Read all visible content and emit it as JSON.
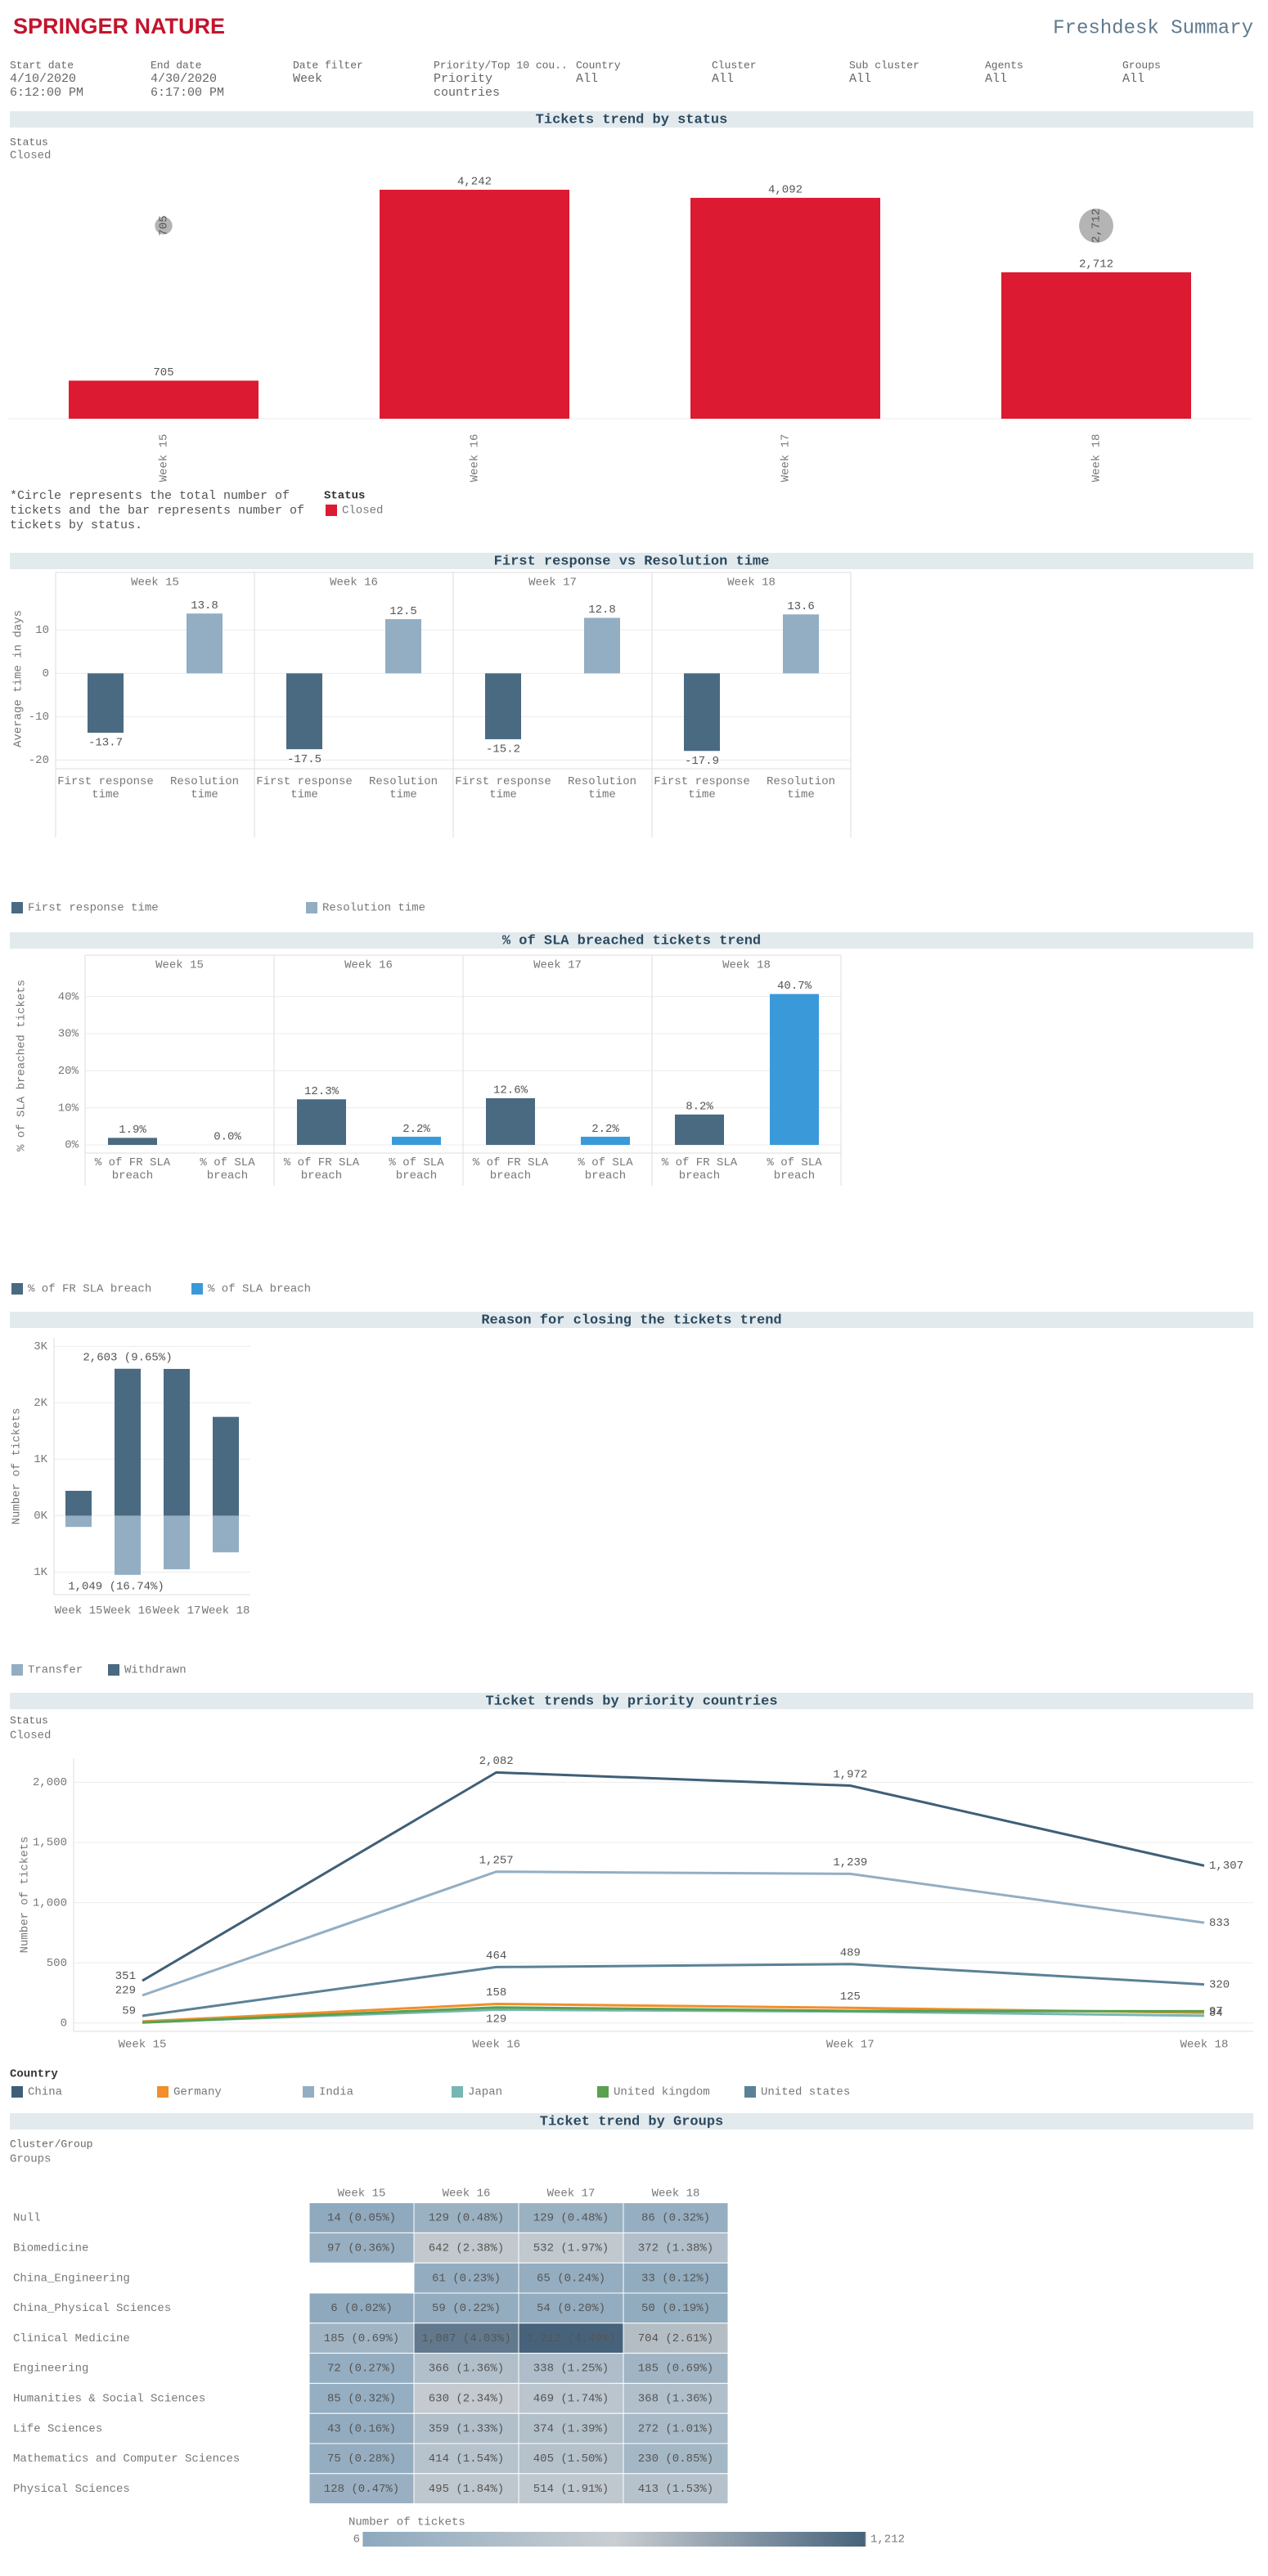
{
  "header": {
    "logo": "SPRINGER NATURE",
    "title": "Freshdesk Summary"
  },
  "filters": [
    {
      "label": "Start date",
      "value": "4/10/2020 6:12:00 PM"
    },
    {
      "label": "End date",
      "value": "4/30/2020 6:17:00 PM"
    },
    {
      "label": "Date filter",
      "value": "Week"
    },
    {
      "label": "Priority/Top 10 cou..",
      "value": "Priority countries"
    },
    {
      "label": "Country",
      "value": "All"
    },
    {
      "label": "Cluster",
      "value": "All"
    },
    {
      "label": "Sub cluster",
      "value": "All"
    },
    {
      "label": "Agents",
      "value": "All"
    },
    {
      "label": "Groups",
      "value": "All"
    }
  ],
  "chart_data": [
    {
      "type": "bar",
      "title": "Tickets trend by status",
      "status_label": "Status",
      "status": "Closed",
      "categories": [
        "Week 15",
        "Week 16",
        "Week 17",
        "Week 18"
      ],
      "series": [
        {
          "name": "Closed",
          "color": "#dc1a32",
          "values": [
            705,
            4242,
            4092,
            2712
          ],
          "value_labels": [
            "705",
            "4,242",
            "4,092",
            "2,712"
          ]
        }
      ],
      "totals": [
        705,
        4242,
        4092,
        2712
      ],
      "total_labels": [
        "705",
        "4,242",
        "4,092",
        "2,712"
      ],
      "total_color": "#b4b4b4",
      "ylim": [
        0,
        4500
      ],
      "note": "*Circle represents the total number of tickets and the bar represents number of tickets by status.",
      "legend_title": "Status"
    },
    {
      "type": "grouped_bar",
      "title": "First response vs Resolution time",
      "ylabel": "Average time in days",
      "categories": [
        "Week 15",
        "Week 16",
        "Week 17",
        "Week 18"
      ],
      "series": [
        {
          "name": "First response time",
          "color": "#4a6a82",
          "values": [
            -13.7,
            -17.5,
            -15.2,
            -17.9
          ]
        },
        {
          "name": "Resolution time",
          "color": "#93aec3",
          "values": [
            13.8,
            12.5,
            12.8,
            13.6
          ]
        }
      ],
      "ylim": [
        -22,
        19.5
      ],
      "yticks": [
        -20,
        -10,
        0,
        10
      ]
    },
    {
      "type": "grouped_bar",
      "title": "% of SLA breached tickets trend",
      "ylabel": "% of SLA breached tickets",
      "categories": [
        "Week 15",
        "Week 16",
        "Week 17",
        "Week 18"
      ],
      "series": [
        {
          "name": "% of FR SLA breach",
          "color": "#4a6a82",
          "values": [
            1.9,
            12.3,
            12.6,
            8.2
          ],
          "value_labels": [
            "1.9%",
            "12.3%",
            "12.6%",
            "8.2%"
          ]
        },
        {
          "name": "% of SLA breach",
          "color": "#3a9ad9",
          "values": [
            0.0,
            2.2,
            2.2,
            40.7
          ],
          "value_labels": [
            "0.0%",
            "2.2%",
            "2.2%",
            "40.7%"
          ]
        }
      ],
      "ylim": [
        -2.2,
        45
      ],
      "yticks": [
        {
          "value": 0,
          "label": "0%"
        },
        {
          "value": 10,
          "label": "10%"
        },
        {
          "value": 20,
          "label": "20%"
        },
        {
          "value": 30,
          "label": "30%"
        },
        {
          "value": 40,
          "label": "40%"
        }
      ]
    },
    {
      "type": "diverging_bar",
      "title": "Reason for closing the tickets trend",
      "ylabel": "Number of tickets",
      "categories": [
        "Week 15",
        "Week 16",
        "Week 17",
        "Week 18"
      ],
      "series": [
        {
          "name": "Transfer",
          "color": "#93aec3",
          "values": [
            -200,
            -1049,
            -950,
            -650
          ]
        },
        {
          "name": "Withdrawn",
          "color": "#4a6a82",
          "values": [
            440,
            2603,
            2600,
            1750
          ]
        }
      ],
      "annotations": [
        "2,603 (9.65%)",
        "1,049 (16.74%)"
      ],
      "ylim": [
        -1400,
        3150
      ],
      "yticks": [
        {
          "value": 3000,
          "label": "3K"
        },
        {
          "value": 2000,
          "label": "2K"
        },
        {
          "value": 1000,
          "label": "1K"
        },
        {
          "value": 0,
          "label": "0K"
        },
        {
          "value": -1000,
          "label": "1K"
        }
      ]
    },
    {
      "type": "line",
      "title": "Ticket trends by priority countries",
      "status_label": "Status",
      "status": "Closed",
      "ylabel": "Number of tickets",
      "categories": [
        "Week 15",
        "Week 16",
        "Week 17",
        "Week 18"
      ],
      "series": [
        {
          "name": "China",
          "color": "#3f5f77",
          "values": [
            351,
            2082,
            1972,
            1307
          ],
          "value_labels": [
            "351",
            "2,082",
            "1,972",
            "1,307"
          ]
        },
        {
          "name": "Germany",
          "color": "#f28e2b",
          "values": [
            12,
            158,
            125,
            84
          ],
          "value_labels": [
            null,
            "158",
            "125",
            "84"
          ]
        },
        {
          "name": "India",
          "color": "#93aec3",
          "values": [
            229,
            1257,
            1239,
            833
          ],
          "value_labels": [
            "229",
            "1,257",
            "1,239",
            "833"
          ]
        },
        {
          "name": "Japan",
          "color": "#76b7b2",
          "values": [
            6,
            110,
            95,
            60
          ]
        },
        {
          "name": "United kingdom",
          "color": "#59a14f",
          "values": [
            3,
            129,
            100,
            97
          ],
          "value_labels": [
            null,
            "129",
            null,
            "97"
          ]
        },
        {
          "name": "United states",
          "color": "#5b8196",
          "values": [
            59,
            464,
            489,
            320
          ],
          "value_labels": [
            "59",
            "464",
            "489",
            "320"
          ]
        }
      ],
      "ylim": [
        -70,
        2200
      ],
      "yticks": [
        0,
        500,
        {
          "value": 1000,
          "label": "1,000"
        },
        {
          "value": 1500,
          "label": "1,500"
        },
        {
          "value": 2000,
          "label": "2,000"
        }
      ],
      "legend_title": "Country"
    },
    {
      "type": "heatmap",
      "title": "Ticket trend by Groups",
      "header_label": "Cluster/Group",
      "row_header": "Groups",
      "categories": [
        "Week 15",
        "Week 16",
        "Week 17",
        "Week 18"
      ],
      "rows": [
        "Null",
        "Biomedicine",
        "China_Engineering",
        "China_Physical Sciences",
        "Clinical Medicine",
        "Engineering",
        "Humanities & Social Sciences",
        "Life Sciences",
        "Mathematics and Computer Sciences",
        "Physical Sciences"
      ],
      "values": [
        [
          14,
          129,
          129,
          86
        ],
        [
          97,
          642,
          532,
          372
        ],
        [
          null,
          61,
          65,
          33
        ],
        [
          6,
          59,
          54,
          50
        ],
        [
          185,
          1087,
          1212,
          704
        ],
        [
          72,
          366,
          338,
          185
        ],
        [
          85,
          630,
          469,
          368
        ],
        [
          43,
          359,
          374,
          272
        ],
        [
          75,
          414,
          405,
          230
        ],
        [
          128,
          495,
          514,
          413
        ]
      ],
      "value_labels": [
        [
          "14 (0.05%)",
          "129 (0.48%)",
          "129 (0.48%)",
          "86 (0.32%)"
        ],
        [
          "97 (0.36%)",
          "642 (2.38%)",
          "532 (1.97%)",
          "372 (1.38%)"
        ],
        [
          null,
          "61 (0.23%)",
          "65 (0.24%)",
          "33 (0.12%)"
        ],
        [
          "6 (0.02%)",
          "59 (0.22%)",
          "54 (0.20%)",
          "50 (0.19%)"
        ],
        [
          "185 (0.69%)",
          "1,087 (4.03%)",
          "1,212 (4.49%)",
          "704 (2.61%)"
        ],
        [
          "72 (0.27%)",
          "366 (1.36%)",
          "338 (1.25%)",
          "185 (0.69%)"
        ],
        [
          "85 (0.32%)",
          "630 (2.34%)",
          "469 (1.74%)",
          "368 (1.36%)"
        ],
        [
          "43 (0.16%)",
          "359 (1.33%)",
          "374 (1.39%)",
          "272 (1.01%)"
        ],
        [
          "75 (0.28%)",
          "414 (1.54%)",
          "405 (1.50%)",
          "230 (0.85%)"
        ],
        [
          "128 (0.47%)",
          "495 (1.84%)",
          "514 (1.91%)",
          "413 (1.53%)"
        ]
      ],
      "color_scale": {
        "title": "Number of tickets",
        "ticks": [
          6,
          {
            "value": 1212,
            "label": "1,212"
          }
        ],
        "colors": [
          "#8ea9be",
          "#c9ced2",
          "#47637b"
        ]
      }
    }
  ]
}
